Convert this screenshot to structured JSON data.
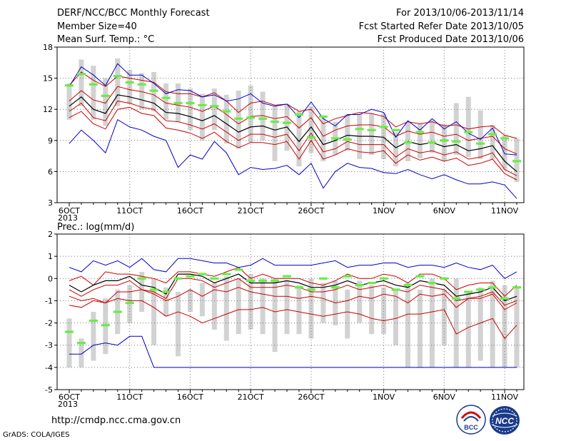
{
  "header": {
    "title": "DERF/NCC/BCC Monthly Forecast",
    "member_size": "Member Size=40",
    "variable1": "Mean Surf. Temp.: °C",
    "forecast_period": "For 2013/10/06-2013/11/14",
    "fcst_started": "Fcst Started Refer Date 2013/10/05",
    "fcst_produced": "Fcst Produced Date 2013/10/06"
  },
  "footer": {
    "url": "http://cmdp.ncc.cma.gov.cn",
    "grads": "GrADS: COLA/IGES",
    "logo1_text": "BCC",
    "logo2_text": "NCC"
  },
  "colors": {
    "ensemble_mean": "#000000",
    "std_band": "#cc0000",
    "min_max": "#0000cc",
    "box": "#d2d2d2",
    "observation": "#66ee44",
    "grid": "#777777"
  },
  "chart_data": [
    {
      "type": "line",
      "title": "Mean Surf. Temp.: °C",
      "xtick_labels": [
        "6OCT",
        "11OCT",
        "16OCT",
        "21OCT",
        "26OCT",
        "1NOV",
        "6NOV",
        "11NOV"
      ],
      "xtick_year": "2013",
      "ylim": [
        3,
        18
      ],
      "yticks": [
        "3",
        "6",
        "9",
        "12",
        "15",
        "18"
      ],
      "grid": true,
      "days": 38,
      "series": [
        {
          "key": "max",
          "values": [
            8.7,
            10.0,
            9.0,
            7.8,
            11.0,
            10.3,
            10.0,
            9.4,
            9.0,
            6.4,
            7.6,
            7.2,
            8.9,
            7.8,
            5.7,
            6.4,
            6.2,
            6.3,
            6.6,
            5.7,
            6.8,
            4.4,
            6.0,
            6.8,
            6.4,
            6.3,
            5.9,
            5.8,
            6.2,
            5.7,
            5.3,
            5.7,
            5.2,
            4.8,
            4.8,
            5.0,
            4.7,
            3.4
          ]
        },
        {
          "key": "upper",
          "values": [
            14.3,
            15.6,
            14.8,
            14.2,
            15.2,
            15.0,
            14.8,
            14.6,
            13.7,
            13.5,
            13.5,
            13.2,
            13.6,
            12.8,
            11.7,
            12.6,
            12.8,
            12.4,
            12.5,
            11.8,
            12.0,
            10.6,
            11.1,
            11.4,
            11.7,
            11.6,
            11.3,
            10.3,
            10.8,
            10.6,
            10.8,
            10.4,
            10.5,
            10.1,
            10.3,
            10.4,
            9.5,
            9.2
          ]
        },
        {
          "key": "upper_sd",
          "values": [
            12.8,
            13.8,
            12.9,
            12.6,
            14.2,
            13.9,
            13.7,
            13.4,
            12.6,
            12.4,
            12.2,
            11.8,
            12.3,
            11.5,
            10.6,
            11.3,
            11.4,
            11.1,
            11.3,
            10.2,
            11.2,
            9.4,
            10.0,
            10.4,
            10.5,
            10.5,
            10.3,
            9.4,
            9.9,
            9.6,
            9.8,
            9.4,
            9.6,
            9.0,
            9.2,
            9.4,
            8.2,
            7.7
          ]
        },
        {
          "key": "mean",
          "values": [
            12.3,
            13.2,
            12.0,
            11.6,
            13.4,
            13.2,
            12.9,
            12.6,
            11.7,
            11.6,
            11.3,
            10.9,
            11.4,
            10.6,
            9.8,
            10.3,
            10.4,
            10.0,
            10.3,
            8.9,
            10.3,
            8.6,
            9.0,
            9.5,
            9.4,
            9.4,
            9.3,
            8.3,
            8.9,
            8.6,
            8.8,
            8.4,
            8.6,
            8.0,
            8.2,
            8.5,
            7.0,
            6.0
          ]
        },
        {
          "key": "lower_sd",
          "values": [
            11.8,
            12.6,
            11.2,
            10.9,
            12.8,
            12.6,
            12.2,
            12.0,
            10.9,
            10.8,
            10.5,
            10.1,
            10.6,
            9.8,
            9.0,
            9.6,
            9.6,
            9.3,
            9.6,
            8.0,
            9.7,
            7.9,
            8.2,
            8.9,
            8.6,
            8.6,
            8.6,
            7.4,
            8.2,
            7.8,
            8.0,
            7.6,
            7.9,
            7.2,
            7.4,
            7.8,
            6.2,
            5.6
          ]
        },
        {
          "key": "lower",
          "values": [
            11.2,
            11.8,
            10.6,
            10.1,
            12.0,
            12.2,
            11.6,
            11.4,
            10.2,
            10.0,
            9.7,
            9.2,
            9.8,
            8.9,
            8.3,
            8.8,
            8.8,
            8.6,
            8.9,
            7.2,
            9.0,
            7.2,
            7.6,
            8.2,
            7.9,
            7.8,
            8.0,
            6.8,
            7.6,
            7.1,
            7.4,
            7.0,
            7.3,
            6.6,
            6.8,
            7.2,
            5.8,
            5.2
          ]
        },
        {
          "key": "min",
          "values": [
            14.2,
            16.1,
            15.3,
            14.3,
            16.4,
            15.3,
            15.3,
            14.5,
            13.5,
            13.9,
            13.8,
            13.2,
            13.4,
            12.8,
            13.0,
            13.5,
            12.6,
            12.3,
            12.5,
            11.2,
            12.7,
            11.1,
            10.4,
            11.5,
            11.5,
            12.0,
            11.7,
            9.3,
            10.9,
            10.0,
            11.1,
            10.1,
            10.8,
            9.7,
            9.1,
            10.2,
            7.7,
            7.6
          ]
        }
      ],
      "boxes": [
        [
          11.0,
          14.5
        ],
        [
          12.3,
          16.8
        ],
        [
          11.0,
          16.2
        ],
        [
          10.4,
          15.0
        ],
        [
          12.3,
          16.9
        ],
        [
          12.5,
          15.8
        ],
        [
          12.0,
          15.5
        ],
        [
          11.8,
          15.6
        ],
        [
          11.0,
          14.5
        ],
        [
          10.8,
          14.5
        ],
        [
          10.0,
          14.0
        ],
        [
          9.0,
          13.5
        ],
        [
          10.0,
          14.0
        ],
        [
          8.7,
          13.4
        ],
        [
          8.2,
          13.8
        ],
        [
          8.8,
          14.3
        ],
        [
          9.0,
          13.7
        ],
        [
          7.0,
          12.3
        ],
        [
          8.0,
          12.5
        ],
        [
          6.5,
          11.8
        ],
        [
          7.8,
          12.3
        ],
        [
          7.0,
          11.2
        ],
        [
          7.6,
          10.8
        ],
        [
          8.0,
          11.5
        ],
        [
          7.2,
          11.5
        ],
        [
          7.6,
          11.6
        ],
        [
          7.2,
          11.6
        ],
        [
          6.5,
          9.8
        ],
        [
          7.0,
          10.8
        ],
        [
          7.3,
          10.6
        ],
        [
          7.8,
          11.0
        ],
        [
          7.0,
          10.6
        ],
        [
          7.6,
          12.6
        ],
        [
          7.4,
          13.2
        ],
        [
          7.2,
          11.9
        ],
        [
          7.2,
          10.5
        ],
        [
          6.2,
          9.5
        ],
        [
          5.0,
          9.2
        ]
      ],
      "observations": [
        14.3,
        15.4,
        14.4,
        13.3,
        15.2,
        14.6,
        14.4,
        13.8,
        13.1,
        12.6,
        12.6,
        12.4,
        12.3,
        11.8,
        11.1,
        11.2,
        11.1,
        10.8,
        10.7,
        11.5,
        9.3,
        11.3,
        9.2,
        9.1,
        10.1,
        10.0,
        10.3,
        10.0,
        8.8,
        9.8,
        8.8,
        9.0,
        8.9,
        9.8,
        8.7,
        9.6,
        9.2,
        7.0
      ]
    },
    {
      "type": "line",
      "title": "Prec.: log(mm/d)",
      "xtick_labels": [
        "6OCT",
        "11OCT",
        "16OCT",
        "21OCT",
        "26OCT",
        "1NOV",
        "6NOV",
        "11NOV"
      ],
      "xtick_year": "2013",
      "ylim": [
        -5,
        2
      ],
      "yticks": [
        "-5",
        "-4",
        "-3",
        "-2",
        "-1",
        "0",
        "1",
        "2"
      ],
      "grid": true,
      "days": 38,
      "series": [
        {
          "key": "max",
          "values": [
            0.5,
            0.3,
            0.8,
            0.6,
            0.8,
            0.5,
            0.9,
            0.4,
            0.3,
            0.9,
            0.9,
            0.8,
            0.7,
            0.7,
            0.5,
            0.6,
            0.9,
            0.6,
            0.6,
            0.6,
            0.6,
            0.7,
            0.8,
            0.5,
            0.6,
            0.6,
            0.7,
            0.7,
            0.5,
            0.6,
            0.6,
            0.5,
            0.7,
            0.5,
            0.4,
            0.6,
            0.0,
            0.3
          ]
        },
        {
          "key": "upper",
          "values": [
            -0.1,
            0.1,
            -0.3,
            0.3,
            0.2,
            0.2,
            0.1,
            0.0,
            -0.2,
            0.3,
            0.3,
            0.2,
            0.1,
            0.3,
            0.5,
            0.0,
            0.2,
            0.0,
            0.0,
            0.0,
            -0.2,
            -0.3,
            -0.1,
            0.2,
            0.0,
            0.0,
            0.2,
            0.1,
            -0.2,
            0.2,
            0.2,
            0.0,
            -0.5,
            -0.3,
            -0.2,
            -0.2,
            -0.8,
            -0.3
          ]
        },
        {
          "key": "mean",
          "values": [
            -0.3,
            -0.6,
            -0.3,
            -0.1,
            -0.1,
            0.1,
            -0.3,
            -0.4,
            -0.7,
            0.2,
            0.2,
            0.1,
            -0.2,
            0.0,
            0.2,
            -0.2,
            -0.2,
            -0.2,
            -0.1,
            -0.2,
            -0.4,
            -0.4,
            -0.3,
            -0.1,
            -0.3,
            -0.2,
            -0.1,
            -0.3,
            -0.4,
            -0.1,
            -0.2,
            -0.3,
            -0.8,
            -0.7,
            -0.6,
            -0.4,
            -1.0,
            -0.8
          ]
        },
        {
          "key": "lower_sd",
          "values": [
            -0.5,
            -0.8,
            -0.5,
            -0.3,
            -0.3,
            -0.1,
            -0.5,
            -0.6,
            -0.9,
            0.0,
            0.0,
            -0.1,
            -0.4,
            -0.2,
            0.0,
            -0.4,
            -0.4,
            -0.4,
            -0.3,
            -0.4,
            -0.6,
            -0.6,
            -0.5,
            -0.3,
            -0.5,
            -0.4,
            -0.3,
            -0.5,
            -0.6,
            -0.3,
            -0.4,
            -0.5,
            -1.0,
            -0.9,
            -0.8,
            -0.6,
            -1.2,
            -1.0
          ]
        },
        {
          "key": "lower",
          "values": [
            -1.2,
            -1.3,
            -1.0,
            -1.1,
            -0.9,
            -1.0,
            -1.0,
            -1.3,
            -1.7,
            -1.5,
            -1.7,
            -2.0,
            -1.8,
            -1.6,
            -1.4,
            -1.4,
            -1.3,
            -1.5,
            -1.4,
            -1.5,
            -1.6,
            -1.7,
            -1.6,
            -1.5,
            -1.6,
            -1.8,
            -1.9,
            -1.8,
            -1.6,
            -1.6,
            -1.5,
            -1.4,
            -2.5,
            -2.2,
            -2.0,
            -1.8,
            -2.7,
            -2.1
          ]
        },
        {
          "key": "min",
          "values": [
            -3.4,
            -3.4,
            -3.0,
            -2.9,
            -3.0,
            -2.6,
            -2.6,
            -4.0,
            -4.0,
            -4.0,
            -4.0,
            -4.0,
            -4.0,
            -4.0,
            -4.0,
            -4.0,
            -4.0,
            -4.0,
            -4.0,
            -4.0,
            -4.0,
            -4.0,
            -4.0,
            -4.0,
            -4.0,
            -4.0,
            -4.0,
            -4.0,
            -4.0,
            -4.0,
            -4.0,
            -4.0,
            -4.0,
            -4.0,
            -4.0,
            -4.0,
            -4.0,
            -4.0
          ]
        },
        {
          "key": "min_red",
          "values": [
            -0.8,
            -1.0,
            -0.9,
            -1.1,
            -0.6,
            -0.6,
            -0.5,
            -0.7,
            -1.0,
            -0.8,
            -0.5,
            -0.8,
            -0.5,
            -0.6,
            -0.4,
            -0.6,
            -0.7,
            -0.8,
            -0.8,
            -0.9,
            -0.8,
            -0.9,
            -1.1,
            -1.0,
            -0.8,
            -0.9,
            -0.7,
            -0.8,
            -1.1,
            -0.7,
            -0.8,
            -0.7,
            -1.3,
            -0.9,
            -0.9,
            -0.7,
            -1.4,
            -1.1
          ]
        }
      ],
      "boxes": [
        [
          -4.0,
          -1.8
        ],
        [
          -4.0,
          -2.7
        ],
        [
          -3.7,
          -1.5
        ],
        [
          -3.4,
          -0.9
        ],
        [
          -2.5,
          -0.5
        ],
        [
          -2.0,
          -0.3
        ],
        [
          -1.5,
          0.3
        ],
        [
          -3.0,
          0.0
        ],
        [
          -1.7,
          -0.4
        ],
        [
          -3.5,
          -0.6
        ],
        [
          -1.5,
          -0.5
        ],
        [
          -1.7,
          -0.2
        ],
        [
          -2.3,
          -0.2
        ],
        [
          -2.8,
          0.1
        ],
        [
          -2.5,
          0.0
        ],
        [
          -2.3,
          0.2
        ],
        [
          -2.5,
          0.0
        ],
        [
          -3.3,
          0.0
        ],
        [
          -2.5,
          -0.1
        ],
        [
          -2.5,
          -0.3
        ],
        [
          -2.7,
          0.0
        ],
        [
          -2.0,
          -0.2
        ],
        [
          -2.1,
          -0.1
        ],
        [
          -2.7,
          -0.5
        ],
        [
          -2.0,
          -0.1
        ],
        [
          -2.5,
          -0.3
        ],
        [
          -2.5,
          -0.4
        ],
        [
          -3.0,
          -0.5
        ],
        [
          -4.0,
          -0.2
        ],
        [
          -4.0,
          -0.5
        ],
        [
          -4.0,
          0.0
        ],
        [
          -3.0,
          -0.5
        ],
        [
          -4.0,
          0.0
        ],
        [
          -4.0,
          -0.6
        ],
        [
          -3.7,
          -0.4
        ],
        [
          -4.0,
          -0.1
        ],
        [
          -4.0,
          -0.3
        ],
        [
          -4.0,
          -0.4
        ]
      ],
      "observations": [
        -2.4,
        -2.9,
        -1.9,
        -2.1,
        -1.5,
        -1.1,
        0.0,
        -0.5,
        -0.6,
        0.0,
        0.1,
        0.2,
        0.0,
        0.2,
        0.4,
        -0.1,
        -0.1,
        -0.1,
        0.1,
        -0.4,
        -0.5,
        0.0,
        -0.4,
        0.1,
        -0.3,
        -0.2,
        0.0,
        -0.5,
        -0.3,
        0.1,
        -0.2,
        0.0,
        -0.9,
        -0.6,
        -0.5,
        -0.4,
        -0.9,
        -0.4
      ]
    }
  ]
}
